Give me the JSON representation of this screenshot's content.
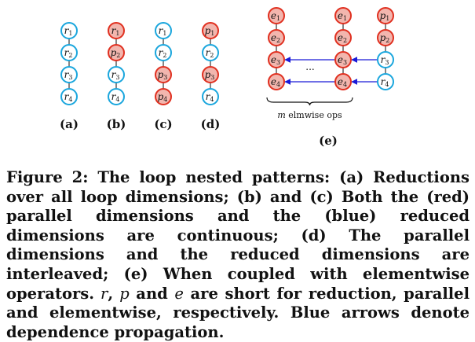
{
  "figure": {
    "panels": [
      {
        "label": "(a)",
        "nodes": [
          {
            "letter": "r",
            "sub": "1",
            "kind": "r"
          },
          {
            "letter": "r",
            "sub": "2",
            "kind": "r"
          },
          {
            "letter": "r",
            "sub": "3",
            "kind": "r"
          },
          {
            "letter": "r",
            "sub": "4",
            "kind": "r"
          }
        ]
      },
      {
        "label": "(b)",
        "nodes": [
          {
            "letter": "r",
            "sub": "1",
            "kind": "r-red"
          },
          {
            "letter": "p",
            "sub": "2",
            "kind": "p"
          },
          {
            "letter": "r",
            "sub": "3",
            "kind": "r"
          },
          {
            "letter": "r",
            "sub": "4",
            "kind": "r"
          }
        ]
      },
      {
        "label": "(c)",
        "nodes": [
          {
            "letter": "r",
            "sub": "1",
            "kind": "r"
          },
          {
            "letter": "r",
            "sub": "2",
            "kind": "r"
          },
          {
            "letter": "p",
            "sub": "3",
            "kind": "p"
          },
          {
            "letter": "p",
            "sub": "4",
            "kind": "p"
          }
        ]
      },
      {
        "label": "(d)",
        "nodes": [
          {
            "letter": "p",
            "sub": "1",
            "kind": "p"
          },
          {
            "letter": "r",
            "sub": "2",
            "kind": "r"
          },
          {
            "letter": "p",
            "sub": "3",
            "kind": "p"
          },
          {
            "letter": "r",
            "sub": "4",
            "kind": "r"
          }
        ]
      }
    ],
    "panel_e": {
      "label": "(e)",
      "brace_label": "m elmwise ops",
      "ellipsis": "...",
      "col1": [
        {
          "letter": "e",
          "sub": "1"
        },
        {
          "letter": "e",
          "sub": "2"
        },
        {
          "letter": "e",
          "sub": "3"
        },
        {
          "letter": "e",
          "sub": "4"
        }
      ],
      "col2": [
        {
          "letter": "e",
          "sub": "1"
        },
        {
          "letter": "e",
          "sub": "2"
        },
        {
          "letter": "e",
          "sub": "3"
        },
        {
          "letter": "e",
          "sub": "4"
        }
      ],
      "col3": [
        {
          "letter": "p",
          "sub": "1",
          "kind": "p"
        },
        {
          "letter": "p",
          "sub": "2",
          "kind": "p"
        },
        {
          "letter": "r",
          "sub": "3",
          "kind": "r"
        },
        {
          "letter": "r",
          "sub": "4",
          "kind": "r"
        }
      ]
    },
    "colors": {
      "red_stroke": "#e03020",
      "red_fill": "#f2b6ae",
      "blue_stroke": "#1aa6dd",
      "blue_fill": "#ffffff",
      "arrow": "#1a1ad8",
      "edge": "#444444"
    }
  },
  "caption": {
    "lead": "Figure 2: The loop nested patterns: (a) Reductions over all loop dimensions; (b) and (c) Both the (red) parallel dimensions and the (blue) reduced dimensions are continuous; (d) The parallel dimensions and the reduced dimensions are interleaved; (e) When coupled with elementwise operators.",
    "var_r": "r",
    "sep1": ",",
    "var_p": "p",
    "and_word": " and ",
    "var_e": "e",
    "tail": " are short for reduction, parallel and elementwise, respectively. Blue arrows denote dependence propagation."
  }
}
